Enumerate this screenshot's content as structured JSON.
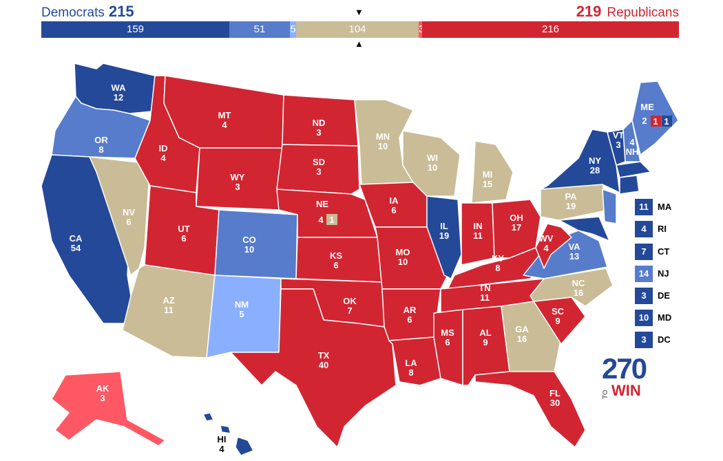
{
  "header": {
    "dem_label": "Democrats",
    "dem_total": "215",
    "rep_total": "219",
    "rep_label": "Republicans"
  },
  "bar": {
    "segments": [
      {
        "value": "159",
        "color": "#244999"
      },
      {
        "value": "51",
        "color": "#577ccc"
      },
      {
        "value": "5",
        "color": "#8aafff"
      },
      {
        "value": "104",
        "color": "#c9bc97"
      },
      {
        "value": "3",
        "color": "#ff5865"
      },
      {
        "value": "216",
        "color": "#d22532"
      }
    ]
  },
  "colors": {
    "safe_dem": "#244999",
    "likely_dem": "#577ccc",
    "lean_dem": "#8aafff",
    "tossup": "#c9bc97",
    "lean_rep": "#ff5865",
    "safe_rep": "#d22532"
  },
  "states": {
    "WA": "12",
    "OR": "8",
    "CA": "54",
    "NV": "6",
    "ID": "4",
    "MT": "4",
    "WY": "3",
    "UT": "6",
    "AZ": "11",
    "CO": "10",
    "NM": "5",
    "ND": "3",
    "SD": "3",
    "NE": "4",
    "NE_split": "1",
    "KS": "6",
    "OK": "7",
    "TX": "40",
    "MN": "10",
    "IA": "6",
    "MO": "10",
    "AR": "6",
    "LA": "8",
    "WI": "10",
    "IL": "19",
    "MI": "15",
    "IN": "11",
    "OH": "17",
    "KY": "8",
    "TN": "11",
    "MS": "6",
    "AL": "9",
    "GA": "16",
    "FL": "30",
    "SC": "9",
    "NC": "16",
    "VA": "13",
    "WV": "4",
    "PA": "19",
    "NY": "28",
    "VT": "3",
    "NH": "4",
    "ME": "2",
    "ME_split1": "1",
    "ME_split2": "1",
    "AK": "3",
    "HI": "4"
  },
  "small_states": [
    {
      "abbr": "MA",
      "votes": "11",
      "color": "#244999"
    },
    {
      "abbr": "RI",
      "votes": "4",
      "color": "#244999"
    },
    {
      "abbr": "CT",
      "votes": "7",
      "color": "#244999"
    },
    {
      "abbr": "NJ",
      "votes": "14",
      "color": "#577ccc"
    },
    {
      "abbr": "DE",
      "votes": "3",
      "color": "#244999"
    },
    {
      "abbr": "MD",
      "votes": "10",
      "color": "#244999"
    },
    {
      "abbr": "DC",
      "votes": "3",
      "color": "#244999"
    }
  ],
  "logo": {
    "number": "270",
    "to": "TO",
    "win": "WIN"
  }
}
